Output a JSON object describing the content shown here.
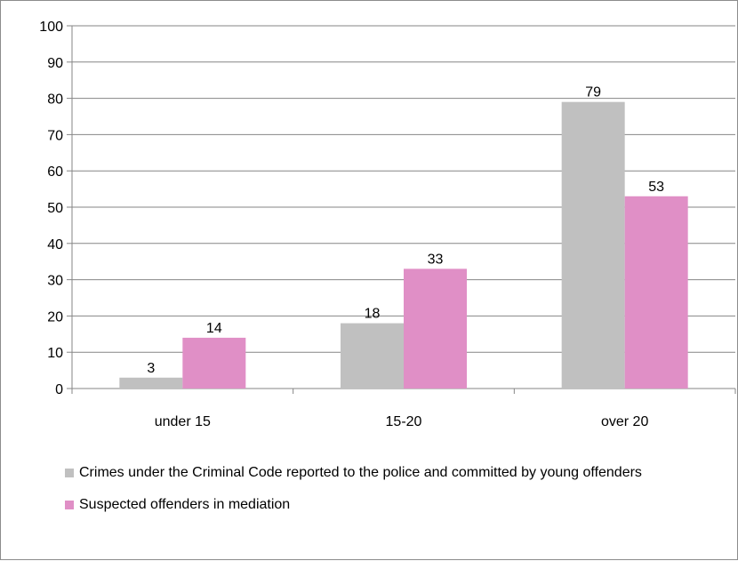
{
  "chart_data": {
    "type": "bar",
    "categories": [
      "under 15",
      "15-20",
      "over 20"
    ],
    "series": [
      {
        "name": "Crimes under the Criminal Code reported to the police and committed by young offenders",
        "values": [
          3,
          18,
          79
        ],
        "color": "#c0c0c0"
      },
      {
        "name": "Suspected offenders in mediation",
        "values": [
          14,
          33,
          53
        ],
        "color": "#e08fc6"
      }
    ],
    "ylim": [
      0,
      100
    ],
    "yticks": [
      "0",
      "10",
      "20",
      "30",
      "40",
      "50",
      "60",
      "70",
      "80",
      "90",
      "100"
    ],
    "grid": true,
    "legend_position": "bottom",
    "title": "",
    "xlabel": "",
    "ylabel": ""
  }
}
